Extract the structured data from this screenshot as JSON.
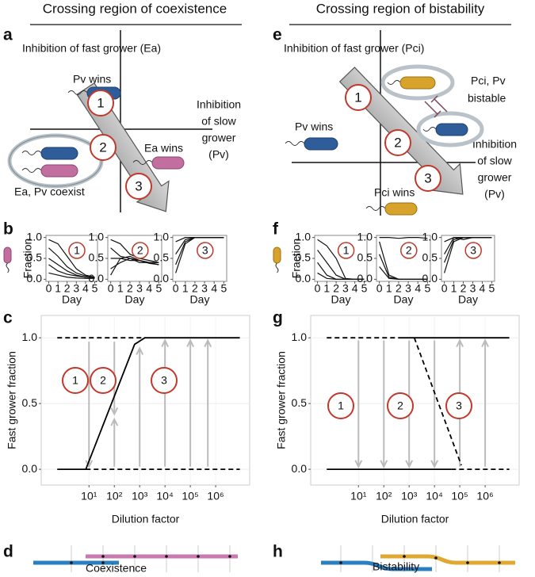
{
  "headers": [
    "Crossing region of coexistence",
    "Crossing region of bistability"
  ],
  "panel_labels": [
    "a",
    "b",
    "c",
    "d",
    "e",
    "f",
    "g",
    "h"
  ],
  "diagrams": [
    {
      "y_axis_label": "Inhibition of fast grower (Ea)",
      "x_axis_label": [
        "Inhibition",
        "of slow",
        "grower",
        "(Pv)"
      ],
      "outcomes": [
        "Pv wins",
        "Ea wins",
        "Ea, Pv coexist"
      ],
      "steps": [
        "1",
        "2",
        "3"
      ]
    },
    {
      "y_axis_label": "Inhibition of fast grower (Pci)",
      "x_axis_label": [
        "Inhibition",
        "of slow",
        "grower",
        "(Pv)"
      ],
      "outcomes": [
        "Pv wins",
        "Pci wins"
      ],
      "bistable_label": [
        "Pci, Pv",
        "bistable"
      ],
      "steps": [
        "1",
        "2",
        "3"
      ]
    }
  ],
  "chart_data": [
    {
      "type": "line",
      "x": [
        0,
        1,
        2,
        3,
        4,
        5
      ],
      "xlim": [
        -0.3,
        5.3
      ],
      "ylim": [
        -0.05,
        1.05
      ],
      "xticks": [
        0,
        1,
        2,
        3,
        4,
        5
      ],
      "yticks": [
        {
          "value": 0,
          "label": "0.0"
        },
        {
          "value": 0.5,
          "label": "0.5"
        },
        {
          "value": 1,
          "label": "1.0"
        }
      ],
      "xlabel": "Day",
      "ylabel": "Fraction",
      "annotations": [
        "1"
      ],
      "series": [
        {
          "color": "#111",
          "values": [
            0.95,
            0.85,
            0.55,
            0.25,
            0.1,
            0.05
          ]
        },
        {
          "color": "#111",
          "values": [
            0.75,
            0.55,
            0.3,
            0.15,
            0.08,
            0.05
          ]
        },
        {
          "color": "#111",
          "values": [
            0.5,
            0.35,
            0.2,
            0.1,
            0.05,
            0.03
          ]
        },
        {
          "color": "#111",
          "values": [
            0.35,
            0.2,
            0.12,
            0.08,
            0.05,
            0.03
          ]
        },
        {
          "color": "#111",
          "values": [
            0.15,
            0.1,
            0.05,
            0.03,
            0.02,
            0.02
          ]
        }
      ]
    },
    {
      "type": "line",
      "x": [
        0,
        1,
        2,
        3,
        4,
        5
      ],
      "xlim": [
        -0.3,
        5.3
      ],
      "ylim": [
        -0.05,
        1.05
      ],
      "xticks": [
        0,
        1,
        2,
        3,
        4,
        5
      ],
      "yticks": [
        {
          "value": 0,
          "label": "0.0"
        },
        {
          "value": 0.5,
          "label": "0.5"
        },
        {
          "value": 1,
          "label": "1.0"
        }
      ],
      "xlabel": "Day",
      "annotations": [
        "2"
      ],
      "series": [
        {
          "color": "#111",
          "values": [
            0.95,
            0.85,
            0.6,
            0.5,
            0.45,
            0.4
          ]
        },
        {
          "color": "#111",
          "values": [
            0.75,
            0.55,
            0.5,
            0.45,
            0.4,
            0.35
          ]
        },
        {
          "color": "#111",
          "values": [
            0.5,
            0.5,
            0.45,
            0.45,
            0.4,
            0.4
          ]
        },
        {
          "color": "#111",
          "values": [
            0.25,
            0.4,
            0.5,
            0.4,
            0.4,
            0.35
          ]
        },
        {
          "color": "#111",
          "values": [
            0.1,
            0.5,
            0.55,
            0.45,
            0.38,
            0.35
          ]
        }
      ]
    },
    {
      "type": "line",
      "x": [
        0,
        1,
        2,
        3,
        4,
        5
      ],
      "xlim": [
        -0.3,
        5.3
      ],
      "ylim": [
        -0.05,
        1.05
      ],
      "xticks": [
        0,
        1,
        2,
        3,
        4,
        5
      ],
      "yticks": [
        {
          "value": 0,
          "label": "0.0"
        },
        {
          "value": 0.5,
          "label": "0.5"
        },
        {
          "value": 1,
          "label": "1.0"
        }
      ],
      "xlabel": "Day",
      "annotations": [
        "3"
      ],
      "series": [
        {
          "color": "#111",
          "values": [
            0.9,
            1,
            1,
            1,
            1,
            1
          ]
        },
        {
          "color": "#111",
          "values": [
            0.6,
            0.95,
            1,
            1,
            1,
            1
          ]
        },
        {
          "color": "#111",
          "values": [
            0.35,
            0.9,
            1,
            1,
            1,
            1
          ]
        },
        {
          "color": "#111",
          "values": [
            0.15,
            0.85,
            1,
            1,
            1,
            1
          ]
        }
      ]
    },
    {
      "type": "line",
      "x": [
        0,
        1,
        2,
        3,
        4,
        5
      ],
      "xlim": [
        -0.3,
        5.3
      ],
      "ylim": [
        -0.05,
        1.05
      ],
      "xticks": [
        0,
        1,
        2,
        3,
        4,
        5
      ],
      "yticks": [
        {
          "value": 0,
          "label": "0.0"
        },
        {
          "value": 0.5,
          "label": "0.5"
        },
        {
          "value": 1,
          "label": "1.0"
        }
      ],
      "xlabel": "Day",
      "ylabel": "Fraction",
      "annotations": [
        "1"
      ],
      "series": [
        {
          "color": "#111",
          "values": [
            0.95,
            0.8,
            0.5,
            0.02,
            0,
            0
          ]
        },
        {
          "color": "#111",
          "values": [
            0.7,
            0.4,
            0.1,
            0,
            0,
            0
          ]
        },
        {
          "color": "#111",
          "values": [
            0.4,
            0.1,
            0,
            0,
            0,
            0
          ]
        },
        {
          "color": "#111",
          "values": [
            0.15,
            0.02,
            0,
            0,
            0,
            0
          ]
        }
      ]
    },
    {
      "type": "line",
      "x": [
        0,
        1,
        2,
        3,
        4,
        5
      ],
      "xlim": [
        -0.3,
        5.3
      ],
      "ylim": [
        -0.05,
        1.05
      ],
      "xticks": [
        0,
        1,
        2,
        3,
        4,
        5
      ],
      "yticks": [
        {
          "value": 0,
          "label": "0.0"
        },
        {
          "value": 0.5,
          "label": "0.5"
        },
        {
          "value": 1,
          "label": "1.0"
        }
      ],
      "xlabel": "Day",
      "annotations": [
        "2"
      ],
      "series": [
        {
          "color": "#111",
          "values": [
            1,
            1,
            0.98,
            1,
            1,
            0.98
          ]
        },
        {
          "color": "#111",
          "values": [
            0.9,
            0.1,
            0,
            0,
            0,
            0
          ]
        },
        {
          "color": "#111",
          "values": [
            0.6,
            0.05,
            0,
            0,
            0,
            0
          ]
        },
        {
          "color": "#111",
          "values": [
            0.3,
            0.02,
            0,
            0,
            0,
            0
          ]
        }
      ]
    },
    {
      "type": "line",
      "x": [
        0,
        1,
        2,
        3,
        4,
        5
      ],
      "xlim": [
        -0.3,
        5.3
      ],
      "ylim": [
        -0.05,
        1.05
      ],
      "xticks": [
        0,
        1,
        2,
        3,
        4,
        5
      ],
      "yticks": [
        {
          "value": 0,
          "label": "0.0"
        },
        {
          "value": 0.5,
          "label": "0.5"
        },
        {
          "value": 1,
          "label": "1.0"
        }
      ],
      "xlabel": "Day",
      "annotations": [
        "3"
      ],
      "series": [
        {
          "color": "#111",
          "values": [
            0.9,
            1,
            1,
            1,
            1,
            1
          ]
        },
        {
          "color": "#111",
          "values": [
            0.6,
            1,
            0.95,
            1,
            1,
            1
          ]
        },
        {
          "color": "#111",
          "values": [
            0.4,
            0.95,
            1,
            1,
            1,
            1
          ]
        },
        {
          "color": "#111",
          "values": [
            0.15,
            0.9,
            1,
            1,
            1,
            1
          ]
        }
      ]
    },
    {
      "type": "line",
      "log_x": true,
      "grid": true,
      "xlabel": "Dilution factor",
      "ylabel": "Fast grower fraction",
      "xlim": [
        0.13,
        22000000
      ],
      "ylim": [
        -0.12,
        1.17
      ],
      "xticks": [
        {
          "value": 10,
          "label": "10¹"
        },
        {
          "value": 100,
          "label": "10²"
        },
        {
          "value": 1000,
          "label": "10³"
        },
        {
          "value": 10000,
          "label": "10⁴"
        },
        {
          "value": 100000,
          "label": "10⁵"
        },
        {
          "value": 1000000,
          "label": "10⁶"
        }
      ],
      "yticks": [
        {
          "value": 0,
          "label": "0.0"
        },
        {
          "value": 0.5,
          "label": "0.5"
        },
        {
          "value": 1,
          "label": "1.0"
        }
      ],
      "series": [
        {
          "color": "#000",
          "linestyle": "solid",
          "x": [
            0.56,
            7.5,
            630,
            1600,
            9000000
          ],
          "values": [
            0,
            0,
            0.95,
            1,
            1
          ]
        },
        {
          "color": "#000",
          "linestyle": "dashed",
          "x": [
            0.56,
            1600
          ],
          "values": [
            1,
            1
          ]
        },
        {
          "color": "#000",
          "linestyle": "dashed",
          "x": [
            7.5,
            9000000
          ],
          "values": [
            0,
            0
          ]
        }
      ],
      "arrow_color": "#bbbbbb",
      "arrows": [
        {
          "x": 10,
          "from": 0.97,
          "to": 0.02
        },
        {
          "x": 100,
          "from": 0.97,
          "to": 0.42
        },
        {
          "x": 100,
          "from": 0.02,
          "to": 0.38
        },
        {
          "x": 1000,
          "from": 0.02,
          "to": 0.92
        },
        {
          "x": 10000,
          "from": 0.02,
          "to": 0.98
        },
        {
          "x": 100000,
          "from": 0.02,
          "to": 0.98
        },
        {
          "x": 490000,
          "from": 0.02,
          "to": 0.98
        }
      ],
      "annotations": [
        "1",
        "2",
        "3"
      ]
    },
    {
      "type": "line",
      "log_x": true,
      "grid": true,
      "xlabel": "Dilution factor",
      "ylabel": "Fast grower fraction",
      "xlim": [
        0.13,
        22000000
      ],
      "ylim": [
        -0.12,
        1.17
      ],
      "xticks": [
        {
          "value": 10,
          "label": "10¹"
        },
        {
          "value": 100,
          "label": "10²"
        },
        {
          "value": 1000,
          "label": "10³"
        },
        {
          "value": 10000,
          "label": "10⁴"
        },
        {
          "value": 100000,
          "label": "10⁵"
        },
        {
          "value": 1000000,
          "label": "10⁶"
        }
      ],
      "yticks": [
        {
          "value": 0,
          "label": "0.0"
        },
        {
          "value": 0.5,
          "label": "0.5"
        },
        {
          "value": 1,
          "label": "1.0"
        }
      ],
      "series": [
        {
          "color": "#000",
          "linestyle": "solid",
          "x": [
            400,
            9000000
          ],
          "values": [
            1,
            1
          ]
        },
        {
          "color": "#000",
          "linestyle": "dashed",
          "x": [
            0.56,
            400
          ],
          "values": [
            1,
            1
          ]
        },
        {
          "color": "#000",
          "linestyle": "solid",
          "x": [
            0.56,
            46000
          ],
          "values": [
            0,
            0
          ]
        },
        {
          "color": "#000",
          "linestyle": "dashed",
          "x": [
            46000,
            9000000
          ],
          "values": [
            0,
            0
          ]
        },
        {
          "color": "#000",
          "linestyle": "dashed",
          "x": [
            1600,
            115000
          ],
          "values": [
            1,
            0.03
          ]
        }
      ],
      "arrow_color": "#bbbbbb",
      "arrows": [
        {
          "x": 10,
          "from": 0.98,
          "to": 0.02
        },
        {
          "x": 100,
          "from": 0.98,
          "to": 0.02
        },
        {
          "x": 1000,
          "from": 0.98,
          "to": 0.02
        },
        {
          "x": 10000,
          "from": 0.98,
          "to": 0.02
        },
        {
          "x": 100000,
          "from": 0.02,
          "to": 0.98
        },
        {
          "x": 1000000,
          "from": 0.02,
          "to": 0.98
        }
      ],
      "annotations": [
        "1",
        "2",
        "3"
      ]
    }
  ],
  "summaries": [
    {
      "label": "Coexistence"
    },
    {
      "label": "Bistability"
    }
  ]
}
